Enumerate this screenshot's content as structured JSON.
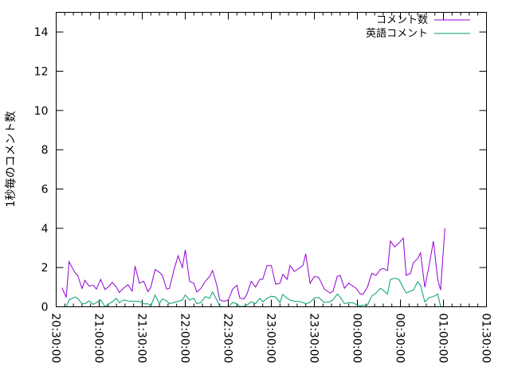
{
  "chart_data": {
    "type": "line",
    "title": "",
    "xlabel": "",
    "ylabel": "1秒毎のコメント数",
    "ylim": [
      0,
      15
    ],
    "xlim": [
      "20:30:00",
      "01:30:00"
    ],
    "xticks": [
      "20:30:00",
      "21:00:00",
      "21:30:00",
      "22:00:00",
      "22:30:00",
      "23:00:00",
      "23:30:00",
      "00:00:00",
      "00:30:00",
      "01:00:00",
      "01:30:00"
    ],
    "yticks": [
      0,
      2,
      4,
      6,
      8,
      10,
      12,
      14
    ],
    "grid": false,
    "legend_position": "top-right",
    "x": [
      "20:34:00",
      "20:37:00",
      "20:39:00",
      "20:43:00",
      "20:45:00",
      "20:48:00",
      "20:50:00",
      "20:53:00",
      "20:56:00",
      "20:58:00",
      "21:01:00",
      "21:04:00",
      "21:07:00",
      "21:09:00",
      "21:12:00",
      "21:14:00",
      "21:17:00",
      "21:20:00",
      "21:23:00",
      "21:25:00",
      "21:28:00",
      "21:31:00",
      "21:34:00",
      "21:36:00",
      "21:39:00",
      "21:42:00",
      "21:44:00",
      "21:47:00",
      "21:49:00",
      "21:52:00",
      "21:55:00",
      "21:58:00",
      "22:00:00",
      "22:03:00",
      "22:06:00",
      "22:08:00",
      "22:11:00",
      "22:14:00",
      "22:17:00",
      "22:19:00",
      "22:22:00",
      "22:24:00",
      "22:27:00",
      "22:30:00",
      "22:33:00",
      "22:36:00",
      "22:38:00",
      "22:41:00",
      "22:43:00",
      "22:46:00",
      "22:49:00",
      "22:52:00",
      "22:54:00",
      "22:57:00",
      "23:00:00",
      "23:03:00",
      "23:06:00",
      "23:08:00",
      "23:11:00",
      "23:13:00",
      "23:16:00",
      "23:19:00",
      "23:22:00",
      "23:24:00",
      "23:27:00",
      "23:30:00",
      "23:33:00",
      "23:37:00",
      "23:41:00",
      "23:43:00",
      "23:46:00",
      "23:48:00",
      "23:51:00",
      "23:54:00",
      "23:57:00",
      "23:59:00",
      "00:02:00",
      "00:04:00",
      "00:07:00",
      "00:10:00",
      "00:13:00",
      "00:16:00",
      "00:18:00",
      "00:21:00",
      "00:23:00",
      "00:26:00",
      "00:29:00",
      "00:32:00",
      "00:34:00",
      "00:37:00",
      "00:39:00",
      "00:42:00",
      "00:44:00",
      "00:47:00",
      "00:50:00",
      "00:53:00",
      "00:56:00",
      "00:58:00",
      "01:01:00"
    ],
    "series": [
      {
        "name": "コメント数",
        "color": "#9400d3",
        "values": [
          0.97,
          0.48,
          2.3,
          1.75,
          1.6,
          0.93,
          1.35,
          1.05,
          1.1,
          0.9,
          1.4,
          0.88,
          1.05,
          1.25,
          1.0,
          0.73,
          0.95,
          1.13,
          0.8,
          2.07,
          1.2,
          1.3,
          0.77,
          1.0,
          1.9,
          1.75,
          1.6,
          0.9,
          0.95,
          1.85,
          2.6,
          2.0,
          2.9,
          1.3,
          1.2,
          0.75,
          0.95,
          1.3,
          1.55,
          1.85,
          1.1,
          0.35,
          0.28,
          0.35,
          0.9,
          1.1,
          0.45,
          0.4,
          0.65,
          1.3,
          1.0,
          1.4,
          1.4,
          2.1,
          2.1,
          1.15,
          1.2,
          1.65,
          1.4,
          2.1,
          1.8,
          1.95,
          2.1,
          2.7,
          1.2,
          1.55,
          1.5,
          0.9,
          0.7,
          0.8,
          1.55,
          1.6,
          0.95,
          1.2,
          1.05,
          0.95,
          0.65,
          0.65,
          1.0,
          1.7,
          1.6,
          1.9,
          1.95,
          1.85,
          3.35,
          3.05,
          3.25,
          3.5,
          1.6,
          1.7,
          2.25,
          2.45,
          2.75,
          1.0,
          2.1,
          3.35,
          1.4,
          0.85,
          4.0
        ]
      },
      {
        "name": "英語コメント",
        "color": "#009e73",
        "values": [
          null,
          0.0,
          0.35,
          0.5,
          0.43,
          0.16,
          0.16,
          0.3,
          0.12,
          0.22,
          0.35,
          0.02,
          0.15,
          0.25,
          0.43,
          0.2,
          0.35,
          0.3,
          0.28,
          0.28,
          0.28,
          0.15,
          0.15,
          0.05,
          0.6,
          0.16,
          0.4,
          0.3,
          0.16,
          0.22,
          0.28,
          0.35,
          0.6,
          0.35,
          0.43,
          0.16,
          0.22,
          0.52,
          0.43,
          0.76,
          0.35,
          0.02,
          0.0,
          0.0,
          0.22,
          0.16,
          0.02,
          0.02,
          0.09,
          0.25,
          0.16,
          0.43,
          0.25,
          0.43,
          0.54,
          0.5,
          0.22,
          0.63,
          0.43,
          0.35,
          0.28,
          0.28,
          0.22,
          0.16,
          0.22,
          0.46,
          0.47,
          0.22,
          0.26,
          0.35,
          0.65,
          0.5,
          0.16,
          0.22,
          0.2,
          0.12,
          0.05,
          0.08,
          0.08,
          0.55,
          0.7,
          0.94,
          0.84,
          0.65,
          1.39,
          1.46,
          1.4,
          0.97,
          0.7,
          0.8,
          0.84,
          1.28,
          1.1,
          0.25,
          0.47,
          0.52,
          0.65,
          0.02,
          0.0
        ]
      }
    ]
  }
}
